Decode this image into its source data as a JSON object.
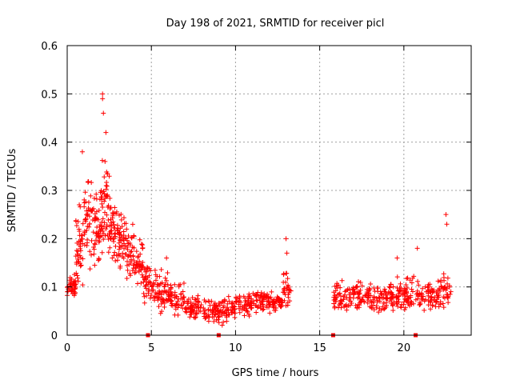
{
  "chart_data": {
    "type": "scatter",
    "title": "Day 198 of 2021, SRMTID for receiver picl",
    "xlabel": "GPS time / hours",
    "ylabel": "SRMTID / TECUs",
    "xlim": [
      0,
      24
    ],
    "ylim": [
      0,
      0.6
    ],
    "x_ticks": [
      0,
      5,
      10,
      15,
      20
    ],
    "x_tick_labels": [
      "0",
      "5",
      "10",
      "15",
      "20"
    ],
    "y_ticks": [
      0,
      0.1,
      0.2,
      0.3,
      0.4,
      0.5,
      0.6
    ],
    "y_tick_labels": [
      "0",
      "0.1",
      "0.2",
      "0.3",
      "0.4",
      "0.5",
      "0.6"
    ],
    "grid": true,
    "series_color": "#ff0000",
    "marker": "plus",
    "envelope_note": "approximate per-hour bands read from the plot (dense point cloud); a few notable outliers listed separately",
    "bands": [
      {
        "x_start": 0.0,
        "x_end": 0.5,
        "y_min": 0.07,
        "y_max": 0.13,
        "count": 40
      },
      {
        "x_start": 0.5,
        "x_end": 1.0,
        "y_min": 0.08,
        "y_max": 0.3,
        "count": 45
      },
      {
        "x_start": 1.0,
        "x_end": 1.5,
        "y_min": 0.1,
        "y_max": 0.36,
        "count": 45
      },
      {
        "x_start": 1.5,
        "x_end": 2.0,
        "y_min": 0.12,
        "y_max": 0.32,
        "count": 45
      },
      {
        "x_start": 2.0,
        "x_end": 2.5,
        "y_min": 0.13,
        "y_max": 0.4,
        "count": 50
      },
      {
        "x_start": 2.5,
        "x_end": 3.0,
        "y_min": 0.12,
        "y_max": 0.32,
        "count": 45
      },
      {
        "x_start": 3.0,
        "x_end": 3.5,
        "y_min": 0.1,
        "y_max": 0.28,
        "count": 45
      },
      {
        "x_start": 3.5,
        "x_end": 4.0,
        "y_min": 0.1,
        "y_max": 0.24,
        "count": 40
      },
      {
        "x_start": 4.0,
        "x_end": 4.5,
        "y_min": 0.09,
        "y_max": 0.22,
        "count": 40
      },
      {
        "x_start": 4.5,
        "x_end": 5.0,
        "y_min": 0.06,
        "y_max": 0.16,
        "count": 35
      },
      {
        "x_start": 5.0,
        "x_end": 6.0,
        "y_min": 0.04,
        "y_max": 0.14,
        "count": 60
      },
      {
        "x_start": 6.0,
        "x_end": 7.0,
        "y_min": 0.03,
        "y_max": 0.12,
        "count": 60
      },
      {
        "x_start": 7.0,
        "x_end": 8.0,
        "y_min": 0.02,
        "y_max": 0.09,
        "count": 60
      },
      {
        "x_start": 8.0,
        "x_end": 9.0,
        "y_min": 0.02,
        "y_max": 0.08,
        "count": 55
      },
      {
        "x_start": 9.0,
        "x_end": 10.0,
        "y_min": 0.01,
        "y_max": 0.09,
        "count": 55
      },
      {
        "x_start": 10.0,
        "x_end": 11.0,
        "y_min": 0.03,
        "y_max": 0.1,
        "count": 55
      },
      {
        "x_start": 11.0,
        "x_end": 12.0,
        "y_min": 0.04,
        "y_max": 0.1,
        "count": 55
      },
      {
        "x_start": 12.0,
        "x_end": 12.8,
        "y_min": 0.04,
        "y_max": 0.1,
        "count": 45
      },
      {
        "x_start": 12.8,
        "x_end": 13.3,
        "y_min": 0.04,
        "y_max": 0.15,
        "count": 30
      },
      {
        "x_start": 15.8,
        "x_end": 17.0,
        "y_min": 0.04,
        "y_max": 0.12,
        "count": 60
      },
      {
        "x_start": 17.0,
        "x_end": 18.0,
        "y_min": 0.04,
        "y_max": 0.12,
        "count": 55
      },
      {
        "x_start": 18.0,
        "x_end": 19.0,
        "y_min": 0.03,
        "y_max": 0.12,
        "count": 55
      },
      {
        "x_start": 19.0,
        "x_end": 20.0,
        "y_min": 0.04,
        "y_max": 0.13,
        "count": 55
      },
      {
        "x_start": 20.0,
        "x_end": 21.0,
        "y_min": 0.04,
        "y_max": 0.13,
        "count": 55
      },
      {
        "x_start": 21.0,
        "x_end": 22.0,
        "y_min": 0.04,
        "y_max": 0.12,
        "count": 50
      },
      {
        "x_start": 22.0,
        "x_end": 22.8,
        "y_min": 0.04,
        "y_max": 0.14,
        "count": 45
      }
    ],
    "outliers": [
      {
        "x": 2.1,
        "y": 0.5
      },
      {
        "x": 2.1,
        "y": 0.49
      },
      {
        "x": 2.15,
        "y": 0.46
      },
      {
        "x": 2.3,
        "y": 0.42
      },
      {
        "x": 0.9,
        "y": 0.38
      },
      {
        "x": 13.0,
        "y": 0.2
      },
      {
        "x": 13.05,
        "y": 0.17
      },
      {
        "x": 22.5,
        "y": 0.25
      },
      {
        "x": 22.55,
        "y": 0.23
      },
      {
        "x": 20.8,
        "y": 0.18
      },
      {
        "x": 5.9,
        "y": 0.16
      },
      {
        "x": 19.6,
        "y": 0.16
      }
    ],
    "zero_markers": [
      4.8,
      9.0,
      15.8,
      20.7
    ]
  }
}
